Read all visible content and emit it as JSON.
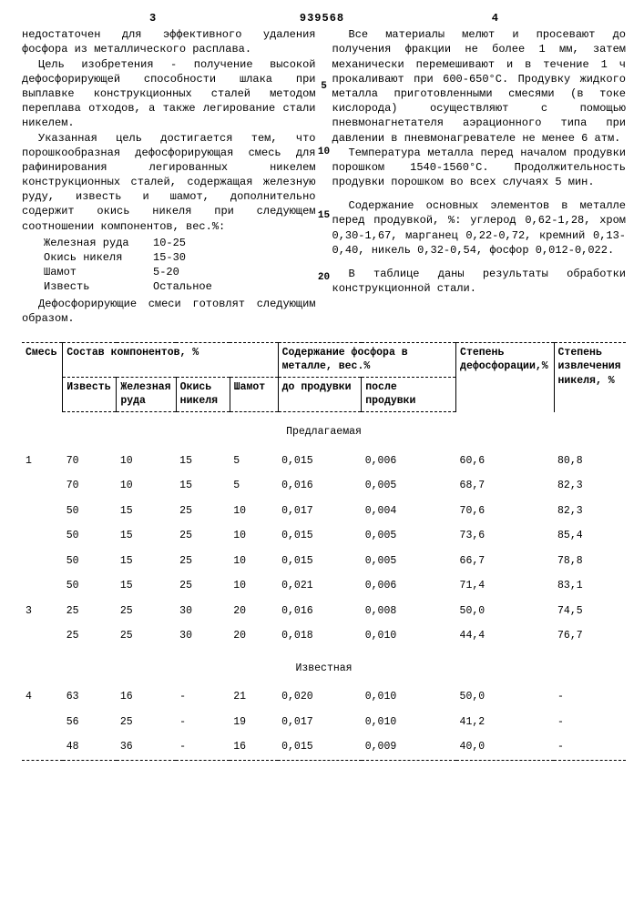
{
  "page": {
    "left_num": "3",
    "right_num": "4",
    "doc_num": "939568"
  },
  "left_col": {
    "p1": "недостаточен для эффективного удаления фосфора из металлического расплава.",
    "p2": "Цель изобретения - получение высокой дефосфорирующей способности шлака при выплавке конструкционных сталей методом переплава отходов, а также легирование стали никелем.",
    "p3": "Указанная цель достигается тем, что порошкообразная дефосфорирующая смесь для рафинирования легированных никелем конструкционных сталей, содержащая железную руду, известь и шамот, дополнительно содержит окись никеля при следующем соотношении компонентов, вес.%:",
    "comp": [
      {
        "name": "Железная руда",
        "val": "10-25"
      },
      {
        "name": "Окись никеля",
        "val": "15-30"
      },
      {
        "name": "Шамот",
        "val": "5-20"
      },
      {
        "name": "Известь",
        "val": "Остальное"
      }
    ],
    "p4": "Дефосфорирующие смеси готовлят следующим образом."
  },
  "right_col": {
    "p1": "Все материалы мелют и просевают до получения фракции не более 1 мм, затем механически перемешивают и в течение 1 ч прокаливают при 600-650°С. Продувку жидкого металла приготовленными смесями (в токе кислорода) осуществляют с помощью пневмонагнетателя аэрационного типа при давлении в пневмонагревателе не менее 6 атм.",
    "p2": "Температура металла перед началом продувки порошком 1540-1560°С. Продолжительность продувки порошком во всех случаях 5 мин.",
    "p3": "Содержание основных элементов в металле перед продувкой, %: углерод 0,62-1,28, хром 0,30-1,67, марганец 0,22-0,72, кремний 0,13-0,40, никель 0,32-0,54, фосфор 0,012-0,022.",
    "p4": "В таблице даны результаты обработки конструкционной стали."
  },
  "margin_nums": {
    "n5": "5",
    "n10": "10",
    "n15": "15",
    "n20": "20"
  },
  "table": {
    "head_top": {
      "mix": "Смесь",
      "comp": "Состав компонентов, %",
      "phos": "Содержание фосфора в металле, вес.%",
      "defos": "Степень дефосфорации,%",
      "nickel": "Степень извлечения никеля, %"
    },
    "head_bot": {
      "izvest": "Известь",
      "ruda": "Железная руда",
      "okis": "Окись никеля",
      "shamot": "Шамот",
      "before": "до продувки",
      "after": "после продувки"
    },
    "section1": "Предлагаемая",
    "section2": "Известная",
    "rows1": [
      {
        "n": "1",
        "iz": "70",
        "ru": "10",
        "ok": "15",
        "sh": "5",
        "b": "0,015",
        "a": "0,006",
        "d": "60,6",
        "ni": "80,8"
      },
      {
        "n": "",
        "iz": "70",
        "ru": "10",
        "ok": "15",
        "sh": "5",
        "b": "0,016",
        "a": "0,005",
        "d": "68,7",
        "ni": "82,3"
      },
      {
        "n": "",
        "iz": "50",
        "ru": "15",
        "ok": "25",
        "sh": "10",
        "b": "0,017",
        "a": "0,004",
        "d": "70,6",
        "ni": "82,3"
      },
      {
        "n": "",
        "iz": "50",
        "ru": "15",
        "ok": "25",
        "sh": "10",
        "b": "0,015",
        "a": "0,005",
        "d": "73,6",
        "ni": "85,4"
      },
      {
        "n": "",
        "iz": "50",
        "ru": "15",
        "ok": "25",
        "sh": "10",
        "b": "0,015",
        "a": "0,005",
        "d": "66,7",
        "ni": "78,8"
      },
      {
        "n": "",
        "iz": "50",
        "ru": "15",
        "ok": "25",
        "sh": "10",
        "b": "0,021",
        "a": "0,006",
        "d": "71,4",
        "ni": "83,1"
      },
      {
        "n": "3",
        "iz": "25",
        "ru": "25",
        "ok": "30",
        "sh": "20",
        "b": "0,016",
        "a": "0,008",
        "d": "50,0",
        "ni": "74,5"
      },
      {
        "n": "",
        "iz": "25",
        "ru": "25",
        "ok": "30",
        "sh": "20",
        "b": "0,018",
        "a": "0,010",
        "d": "44,4",
        "ni": "76,7"
      }
    ],
    "rows2": [
      {
        "n": "4",
        "iz": "63",
        "ru": "16",
        "ok": "-",
        "sh": "21",
        "b": "0,020",
        "a": "0,010",
        "d": "50,0",
        "ni": "-"
      },
      {
        "n": "",
        "iz": "56",
        "ru": "25",
        "ok": "-",
        "sh": "19",
        "b": "0,017",
        "a": "0,010",
        "d": "41,2",
        "ni": "-"
      },
      {
        "n": "",
        "iz": "48",
        "ru": "36",
        "ok": "-",
        "sh": "16",
        "b": "0,015",
        "a": "0,009",
        "d": "40,0",
        "ni": "-"
      }
    ]
  }
}
